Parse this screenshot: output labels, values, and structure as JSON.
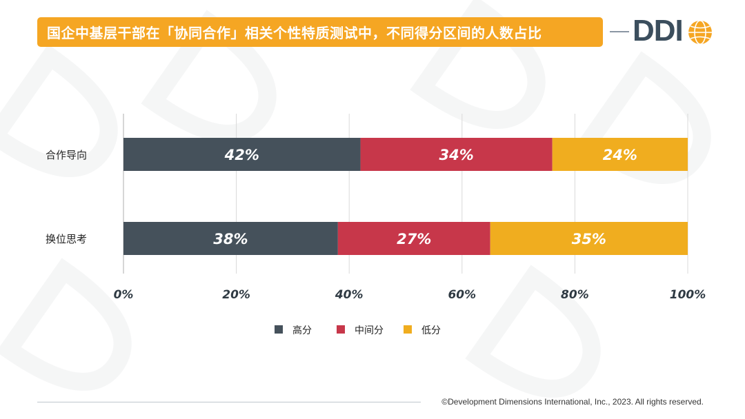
{
  "title": "国企中基层干部在「协同合作」相关个性特质测试中，不同得分区间的人数占比",
  "logo": {
    "text": "DDI",
    "icon": "globe-icon"
  },
  "copyright": "©Development Dimensions International, Inc., 2023. All rights reserved.",
  "colors": {
    "title_bg": "#f5a623",
    "high": "#45515b",
    "mid": "#c7374a",
    "low": "#f0ad1f"
  },
  "chart_data": {
    "type": "bar",
    "orientation": "horizontal",
    "stacked": true,
    "percent_axis": true,
    "categories": [
      "合作导向",
      "换位思考"
    ],
    "series": [
      {
        "name": "高分",
        "values": [
          42,
          38
        ],
        "labels": [
          "42%",
          "38%"
        ],
        "color": "#45515b"
      },
      {
        "name": "中间分",
        "values": [
          34,
          27
        ],
        "labels": [
          "34%",
          "27%"
        ],
        "color": "#c7374a"
      },
      {
        "name": "低分",
        "values": [
          24,
          35
        ],
        "labels": [
          "24%",
          "35%"
        ],
        "color": "#f0ad1f"
      }
    ],
    "xlim": [
      0,
      100
    ],
    "xticks": [
      0,
      20,
      40,
      60,
      80,
      100
    ],
    "xtick_labels": [
      "0%",
      "20%",
      "40%",
      "60%",
      "80%",
      "100%"
    ],
    "grid": true,
    "legend_position": "bottom"
  }
}
